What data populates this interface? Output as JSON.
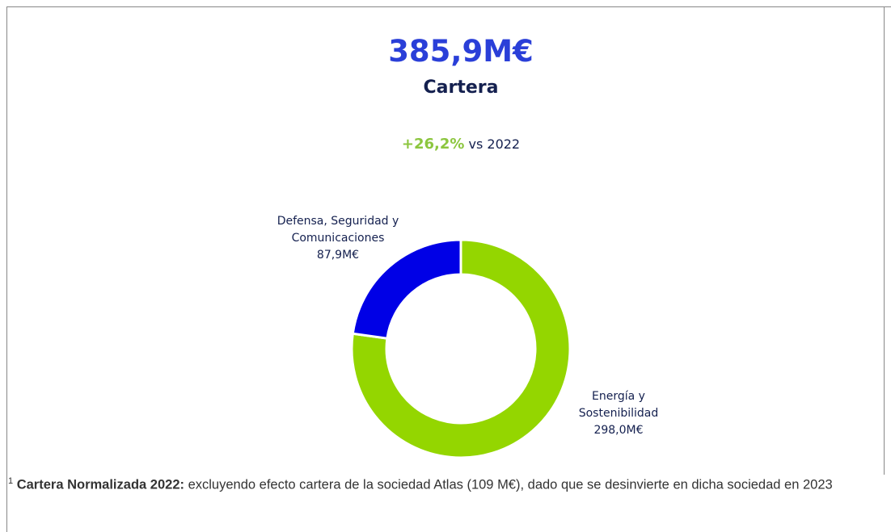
{
  "chart_data": {
    "type": "donut",
    "title": "385,9M€",
    "subtitle": "Cartera",
    "annotation": {
      "value": "+26,2%",
      "text": "vs 2022"
    },
    "categories": [
      "Energía y Sostenibilidad",
      "Defensa, Seguridad y Comunicaciones"
    ],
    "values": [
      298.0,
      87.9
    ],
    "value_labels": [
      "298,0M€",
      "87,9M€"
    ],
    "colors": [
      "#94d600",
      "#0000e6"
    ]
  },
  "footnote": {
    "marker": "1",
    "term": "Cartera Normalizada 2022:",
    "text": "excluyendo efecto cartera de la sociedad Atlas (109 M€), dado que se desinvierte en dicha sociedad en 2023"
  }
}
